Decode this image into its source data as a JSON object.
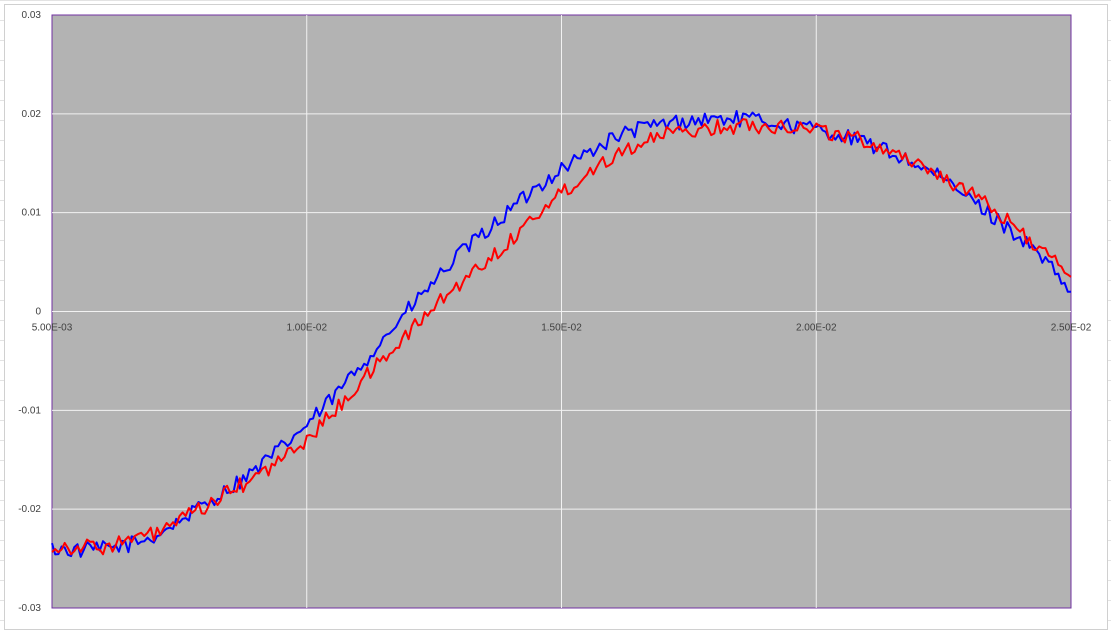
{
  "colors": {
    "plot_background": "#b3b3b3",
    "gridline": "#f2f2f2",
    "plot_border": "#7030a0",
    "tick_label": "#404040",
    "series_blue": "#0000ff",
    "series_red": "#ff0000"
  },
  "chart_data": {
    "type": "line",
    "title": "",
    "xlabel": "",
    "ylabel": "",
    "xlim": [
      0.005,
      0.025
    ],
    "ylim": [
      -0.03,
      0.03
    ],
    "grid": true,
    "legend": "none",
    "x_ticks": [
      0.005,
      0.01,
      0.015,
      0.02,
      0.025
    ],
    "x_tick_labels": [
      "5.00E-03",
      "1.00E-02",
      "1.50E-02",
      "2.00E-02",
      "2.50E-02"
    ],
    "y_ticks": [
      0.03,
      0.02,
      0.01,
      0,
      -0.01,
      -0.02,
      -0.03
    ],
    "y_tick_labels": [
      "0.03",
      "0.02",
      "0.01",
      "0",
      "-0.01",
      "-0.02",
      "-0.03"
    ],
    "x": [
      0.005,
      0.0055,
      0.006,
      0.0065,
      0.007,
      0.0075,
      0.008,
      0.0085,
      0.009,
      0.0095,
      0.01,
      0.0105,
      0.011,
      0.0115,
      0.012,
      0.0125,
      0.013,
      0.0135,
      0.014,
      0.0145,
      0.015,
      0.0155,
      0.016,
      0.0165,
      0.017,
      0.0175,
      0.018,
      0.0185,
      0.019,
      0.0195,
      0.02,
      0.0205,
      0.021,
      0.0215,
      0.022,
      0.0225,
      0.023,
      0.0235,
      0.024,
      0.0245,
      0.025
    ],
    "series": [
      {
        "color": "#0000ff",
        "values": [
          -0.024,
          -0.0242,
          -0.024,
          -0.0236,
          -0.0228,
          -0.0212,
          -0.0195,
          -0.0178,
          -0.016,
          -0.0138,
          -0.0115,
          -0.0088,
          -0.0058,
          -0.0028,
          0.0002,
          0.003,
          0.0058,
          0.008,
          0.0103,
          0.0125,
          0.0145,
          0.016,
          0.0175,
          0.0185,
          0.019,
          0.0193,
          0.0195,
          0.0195,
          0.0193,
          0.0188,
          0.0185,
          0.0178,
          0.017,
          0.016,
          0.0148,
          0.0133,
          0.0115,
          0.0095,
          0.0075,
          0.005,
          0.002
        ]
      },
      {
        "color": "#ff0000",
        "values": [
          -0.0238,
          -0.0238,
          -0.0238,
          -0.0232,
          -0.0225,
          -0.0212,
          -0.0198,
          -0.0182,
          -0.0168,
          -0.015,
          -0.013,
          -0.0103,
          -0.0075,
          -0.0048,
          -0.0022,
          0.0005,
          0.0028,
          0.005,
          0.0072,
          0.0098,
          0.012,
          0.014,
          0.0158,
          0.017,
          0.0178,
          0.0183,
          0.0186,
          0.0188,
          0.0188,
          0.0188,
          0.0185,
          0.0178,
          0.0172,
          0.0162,
          0.015,
          0.0136,
          0.012,
          0.0102,
          0.0082,
          0.0058,
          0.0035
        ]
      }
    ]
  }
}
